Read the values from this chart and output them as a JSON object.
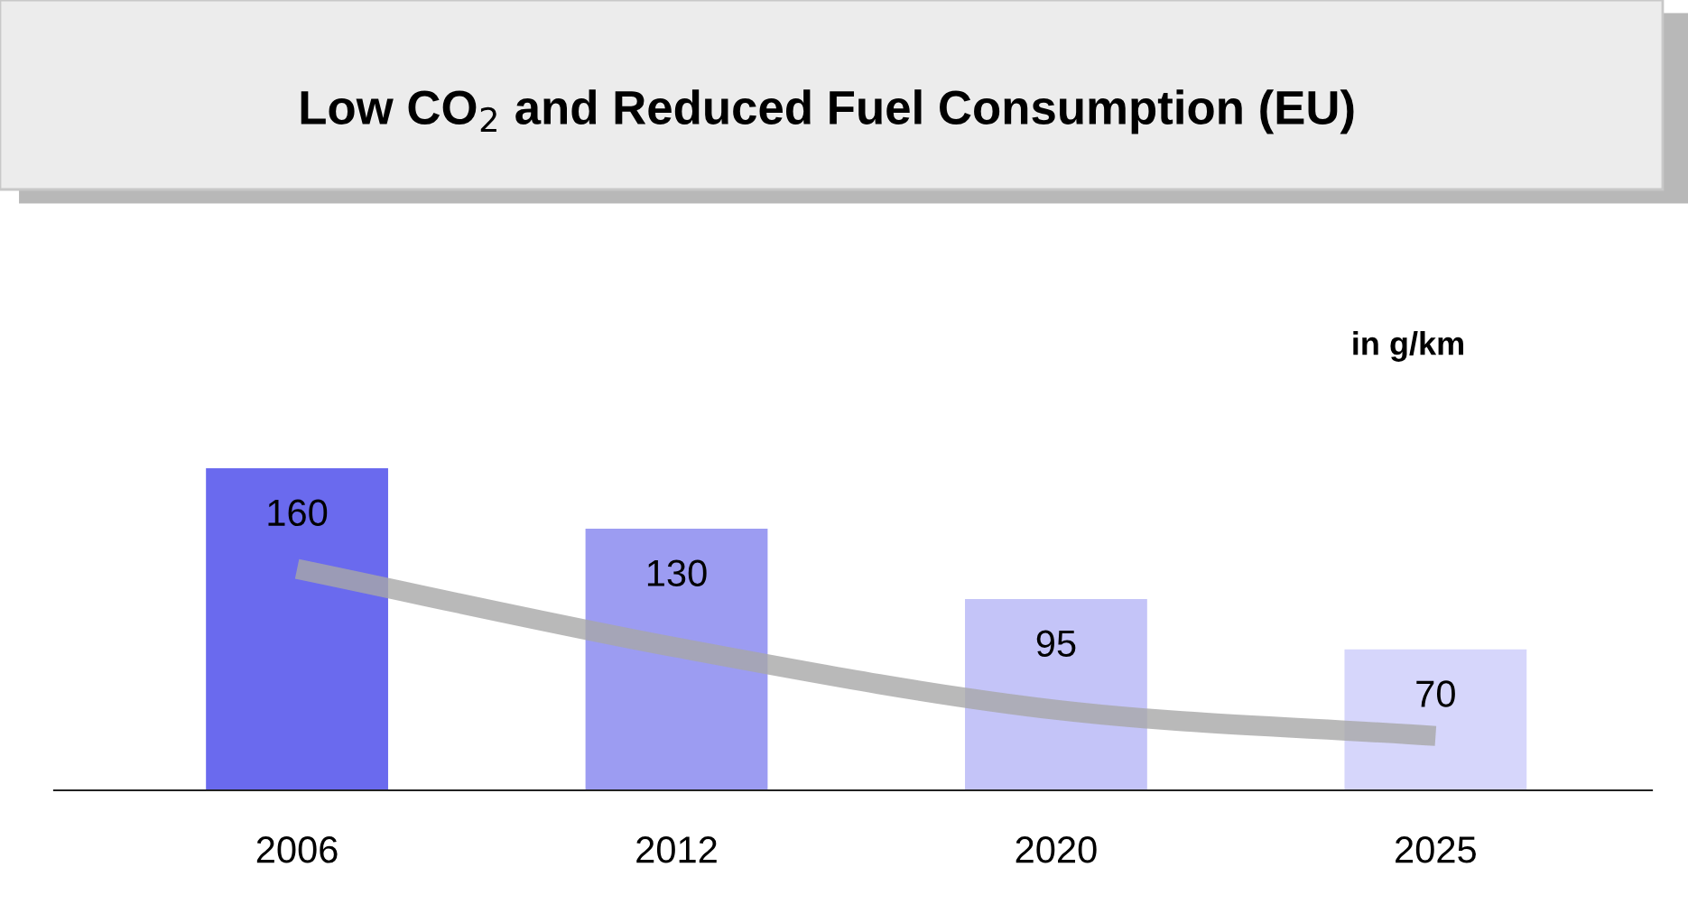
{
  "chart_data": {
    "type": "bar",
    "title": "Low CO$_{2}$ and Reduced Fuel Consumption (EU)",
    "annotations": [
      "in g/km"
    ],
    "categories": [
      "2006",
      "2012",
      "2020",
      "2025"
    ],
    "series": [
      {
        "values": [
          160,
          130,
          95,
          70
        ],
        "colors": [
          "#6a6aee",
          "#9c9cf2",
          "#c4c4f8",
          "#d6d6fb"
        ],
        "value_labels": [
          "160",
          "130",
          "95",
          "70"
        ]
      },
      {
        "type": "line",
        "color": "#a8a8a8",
        "values": [
          110,
          71,
          40,
          27
        ]
      }
    ],
    "grid": false,
    "legend": false
  }
}
